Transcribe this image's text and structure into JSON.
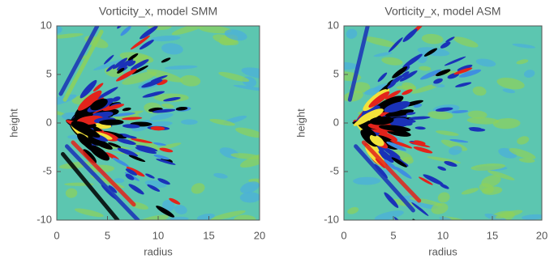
{
  "chart_data": [
    {
      "type": "heatmap",
      "title": "Vorticity_x, model SMM",
      "xlabel": "radius",
      "ylabel": "height",
      "xlim": [
        0,
        20
      ],
      "ylim": [
        -10,
        10
      ],
      "xticks": [
        0,
        5,
        10,
        15,
        20
      ],
      "yticks": [
        -10,
        -5,
        0,
        5,
        10
      ]
    },
    {
      "type": "heatmap",
      "title": "Vorticity_x, model ASM",
      "xlabel": "radius",
      "ylabel": "height",
      "xlim": [
        0,
        20
      ],
      "ylim": [
        -10,
        10
      ],
      "xticks": [
        0,
        5,
        10,
        15,
        20
      ],
      "yticks": [
        -10,
        -5,
        0,
        5,
        10
      ]
    }
  ]
}
